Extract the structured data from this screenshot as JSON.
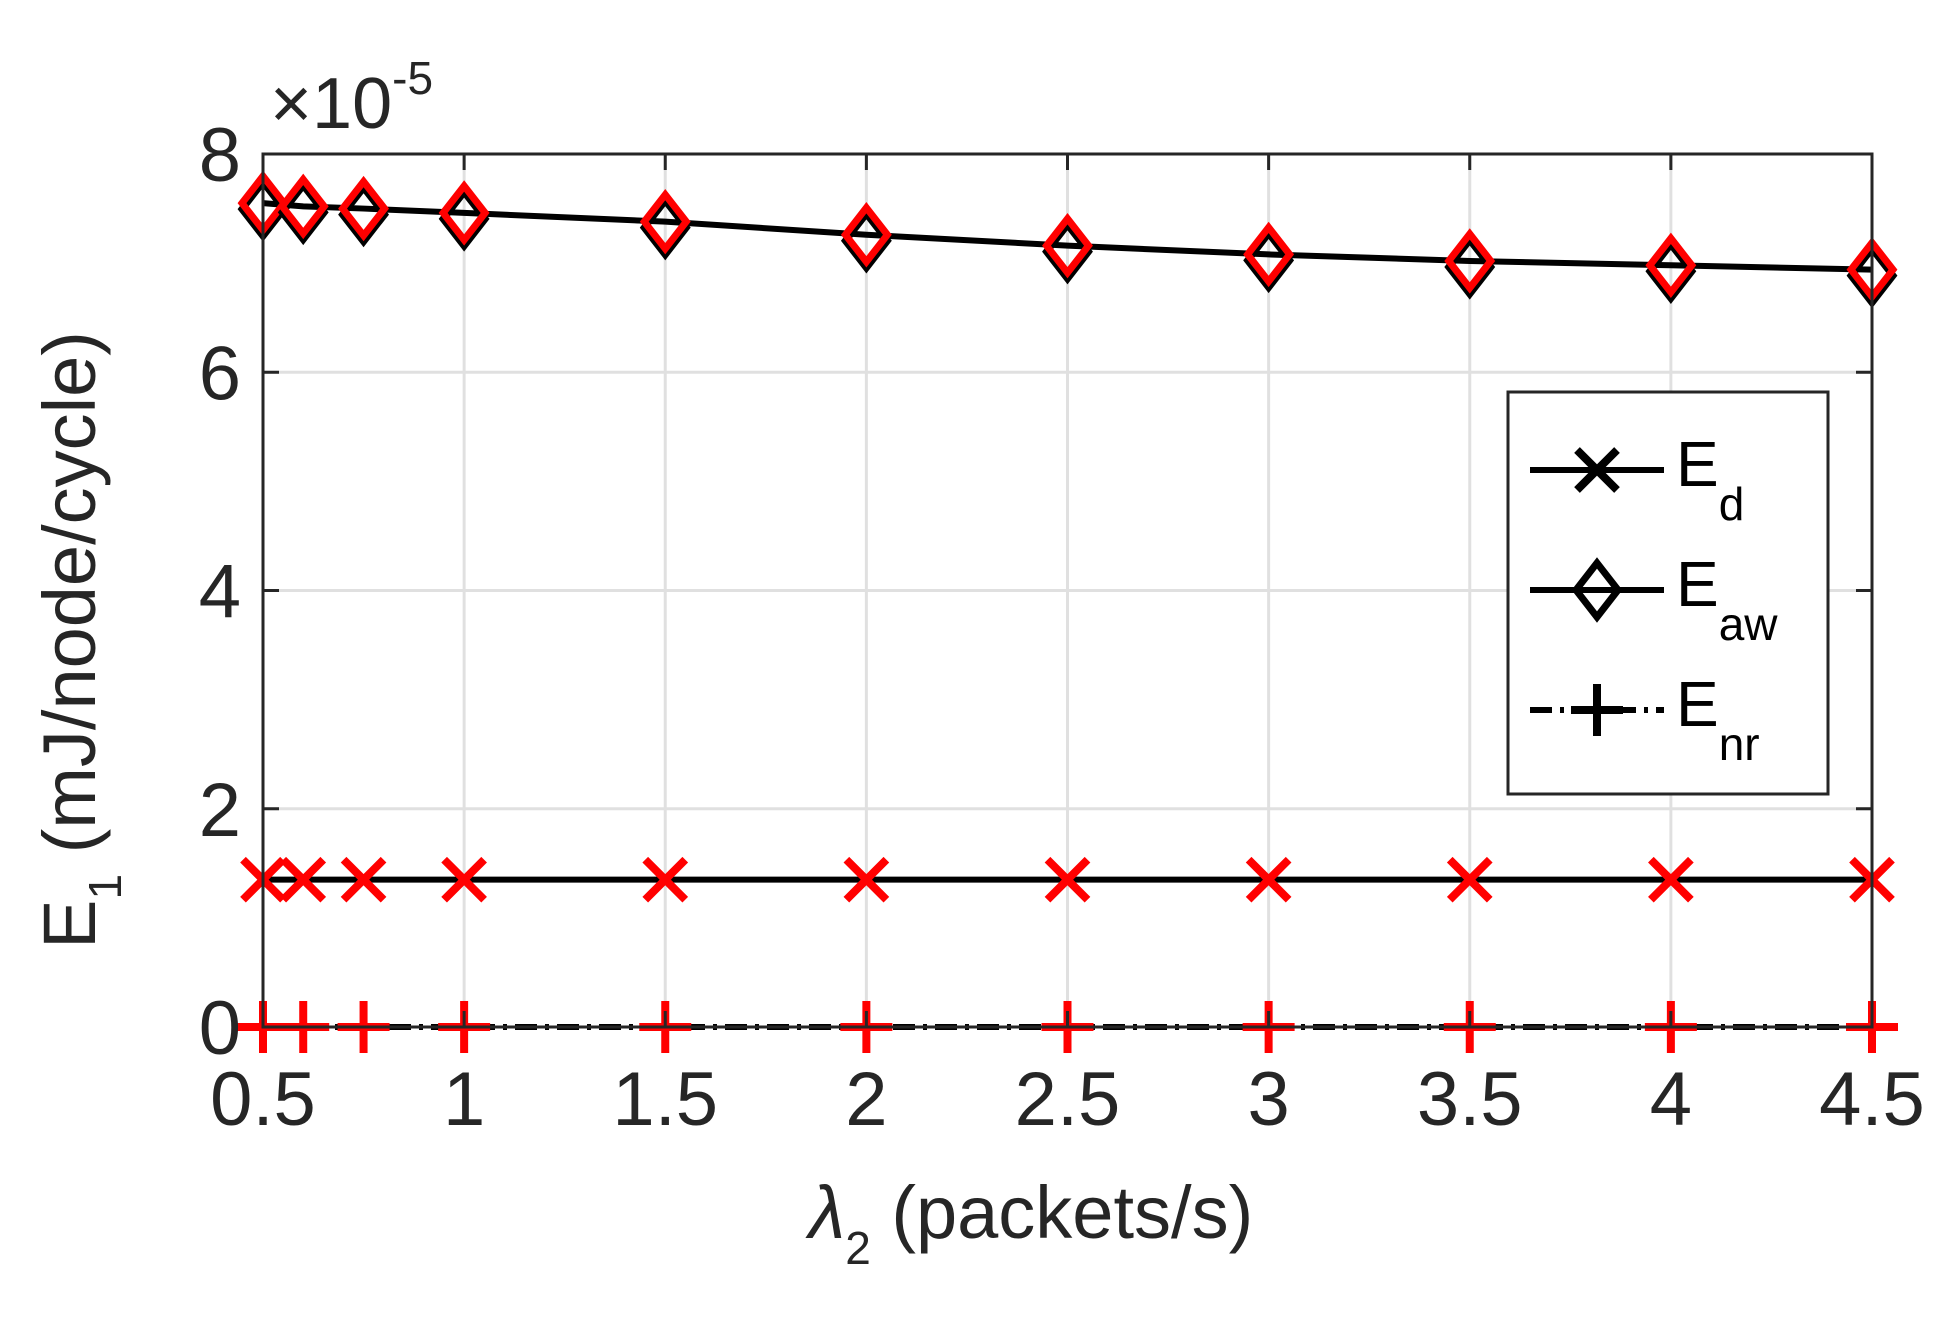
{
  "chart_data": {
    "type": "line",
    "xlabel": {
      "symbol": "λ",
      "subscript": "2",
      "rest": " (packets/s)"
    },
    "ylabel": {
      "symbol": "E",
      "subscript": "1",
      "rest": " (mJ/node/cycle)"
    },
    "y_exponent": {
      "prefix": "×10",
      "power": "-5"
    },
    "xlim": [
      0.5,
      4.5
    ],
    "ylim": [
      0,
      8
    ],
    "xticks": [
      "0.5",
      "1",
      "1.5",
      "2",
      "2.5",
      "3",
      "3.5",
      "4",
      "4.5"
    ],
    "xtick_values": [
      0.5,
      1,
      1.5,
      2,
      2.5,
      3,
      3.5,
      4,
      4.5
    ],
    "yticks": [
      "0",
      "2",
      "4",
      "6",
      "8"
    ],
    "ytick_values": [
      0,
      2,
      4,
      6,
      8
    ],
    "grid": true,
    "legend_position": "right",
    "x": [
      0.5,
      0.6,
      0.75,
      1,
      1.5,
      2,
      2.5,
      3,
      3.5,
      4,
      4.5
    ],
    "series": [
      {
        "name": "E",
        "subscript": "d",
        "marker": "x",
        "line_style": "solid",
        "values": [
          1.35,
          1.35,
          1.35,
          1.35,
          1.35,
          1.35,
          1.35,
          1.35,
          1.35,
          1.35,
          1.35
        ]
      },
      {
        "name": "E",
        "subscript": "aw",
        "marker": "diamond",
        "line_style": "solid",
        "values": [
          7.55,
          7.52,
          7.5,
          7.46,
          7.38,
          7.26,
          7.16,
          7.08,
          7.02,
          6.98,
          6.94
        ]
      },
      {
        "name": "E",
        "subscript": "nr",
        "marker": "plus",
        "line_style": "dashdot",
        "values": [
          0,
          0,
          0,
          0,
          0,
          0,
          0,
          0,
          0,
          0,
          0
        ]
      }
    ],
    "colors": {
      "line": "#000000",
      "marker": "#ff0000",
      "text": "#262626",
      "grid": "#e0e0e0"
    }
  }
}
